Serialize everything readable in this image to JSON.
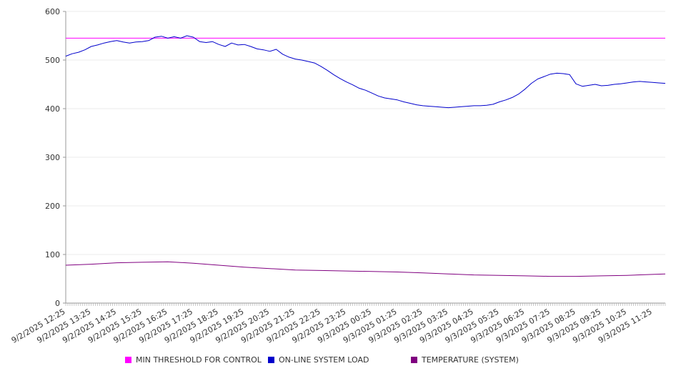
{
  "chart_data": {
    "type": "line",
    "title": "",
    "xlabel": "",
    "ylabel": "",
    "ylim": [
      0,
      600
    ],
    "y_ticks": [
      0,
      100,
      200,
      300,
      400,
      500,
      600
    ],
    "grid": "horizontal",
    "legend_position": "bottom",
    "x_tick_labels": [
      "9/2/2025 12:25",
      "9/2/2025 13:25",
      "9/2/2025 14:25",
      "9/2/2025 15:25",
      "9/2/2025 16:25",
      "9/2/2025 17:25",
      "9/2/2025 18:25",
      "9/2/2025 19:25",
      "9/2/2025 20:25",
      "9/2/2025 21:25",
      "9/2/2025 22:25",
      "9/2/2025 23:25",
      "9/3/2025 00:25",
      "9/3/2025 01:25",
      "9/3/2025 02:25",
      "9/3/2025 03:25",
      "9/3/2025 04:25",
      "9/3/2025 05:25",
      "9/3/2025 06:25",
      "9/3/2025 07:25",
      "9/3/2025 08:25",
      "9/3/2025 09:25",
      "9/3/2025 10:25",
      "9/3/2025 11:25"
    ],
    "x_hours_start": 0,
    "x_hours_end": 23.5,
    "series": [
      {
        "name": "MIN THRESHOLD FOR CONTROL",
        "color": "#ff00ff",
        "x_hours": [
          0,
          23.5
        ],
        "values": [
          545,
          545
        ]
      },
      {
        "name": "ON-LINE SYSTEM LOAD",
        "color": "#0000cc",
        "x_hours": [
          0,
          0.25,
          0.5,
          0.75,
          1.0,
          1.25,
          1.5,
          1.75,
          2.0,
          2.25,
          2.5,
          2.75,
          3.0,
          3.25,
          3.5,
          3.75,
          4.0,
          4.25,
          4.5,
          4.75,
          5.0,
          5.25,
          5.5,
          5.75,
          6.0,
          6.25,
          6.5,
          6.75,
          7.0,
          7.25,
          7.5,
          7.75,
          8.0,
          8.25,
          8.5,
          8.75,
          9.0,
          9.25,
          9.5,
          9.75,
          10.0,
          10.25,
          10.5,
          10.75,
          11.0,
          11.25,
          11.5,
          11.75,
          12.0,
          12.25,
          12.5,
          12.75,
          13.0,
          13.25,
          13.5,
          13.75,
          14.0,
          14.25,
          14.5,
          14.75,
          15.0,
          15.25,
          15.5,
          15.75,
          16.0,
          16.25,
          16.5,
          16.75,
          17.0,
          17.25,
          17.5,
          17.75,
          18.0,
          18.25,
          18.5,
          18.75,
          19.0,
          19.25,
          19.5,
          19.75,
          20.0,
          20.25,
          20.5,
          20.75,
          21.0,
          21.25,
          21.5,
          21.75,
          22.0,
          22.25,
          22.5,
          22.75,
          23.0,
          23.25,
          23.5
        ],
        "values": [
          508,
          513,
          516,
          521,
          528,
          531,
          535,
          538,
          540,
          537,
          535,
          537,
          538,
          540,
          547,
          549,
          545,
          548,
          545,
          550,
          547,
          538,
          536,
          538,
          532,
          528,
          535,
          531,
          532,
          528,
          523,
          521,
          518,
          522,
          512,
          506,
          502,
          500,
          497,
          494,
          487,
          479,
          470,
          462,
          455,
          449,
          442,
          438,
          432,
          426,
          422,
          420,
          418,
          414,
          411,
          408,
          406,
          405,
          404,
          403,
          402,
          403,
          404,
          405,
          406,
          406,
          407,
          409,
          414,
          418,
          423,
          430,
          440,
          452,
          461,
          466,
          471,
          473,
          472,
          470,
          451,
          446,
          448,
          450,
          447,
          448,
          450,
          451,
          453,
          455,
          456,
          455,
          454,
          453,
          452
        ]
      },
      {
        "name": "TEMPERATURE (SYSTEM)",
        "color": "#800080",
        "x_hours": [
          0,
          1,
          2,
          3,
          4,
          5,
          6,
          7,
          8,
          9,
          10,
          11,
          12,
          13,
          14,
          15,
          16,
          17,
          18,
          19,
          20,
          21,
          22,
          23,
          23.5
        ],
        "values": [
          78,
          80,
          83,
          84,
          85,
          82,
          78,
          74,
          71,
          68,
          67,
          66,
          65,
          64,
          62,
          60,
          58,
          57,
          56,
          55,
          55,
          56,
          57,
          59,
          60
        ]
      }
    ]
  }
}
